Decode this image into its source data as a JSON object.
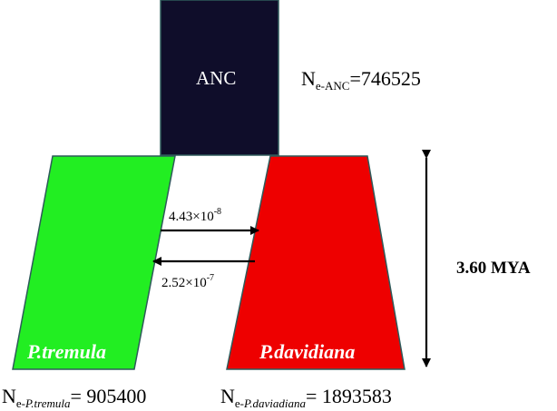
{
  "diagram": {
    "ancestral": {
      "label": "ANC",
      "ne_prefix": "N",
      "ne_sub": "e-ANC",
      "ne_value": "=746525",
      "color": "#0f0d2a"
    },
    "left_pop": {
      "label": "P.tremula",
      "ne_prefix": "N",
      "ne_sub_prefix": "e-",
      "ne_sub_italic": "P.tremula",
      "ne_value": "= 905400",
      "color": "#22ee22"
    },
    "right_pop": {
      "label": "P.davidiana",
      "ne_prefix": "N",
      "ne_sub_prefix": "e-",
      "ne_sub_italic": "P.daviadiana",
      "ne_value": "= 1893583",
      "color": "#ee0000"
    },
    "migration_right": {
      "base": "4.43×10",
      "exponent": "-8"
    },
    "migration_left": {
      "base": "2.52×10",
      "exponent": "-7"
    },
    "split_time": "3.60 MYA",
    "outline_color": "#2e5a5a"
  }
}
